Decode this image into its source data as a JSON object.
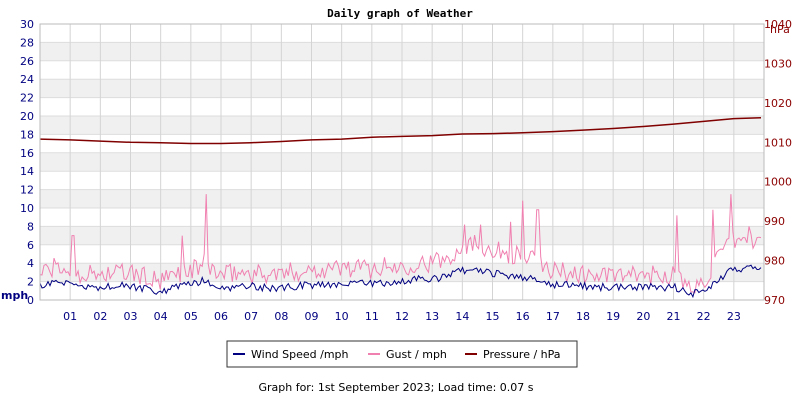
{
  "chart_data": {
    "type": "line",
    "title": "Daily graph of Weather",
    "footer": "Graph for: 1st September 2023; Load time: 0.07 s",
    "y_left": {
      "unit": "mph",
      "min": 0,
      "max": 30,
      "ticks": [
        0,
        2,
        4,
        6,
        8,
        10,
        12,
        14,
        16,
        18,
        20,
        22,
        24,
        26,
        28,
        30
      ]
    },
    "y_right": {
      "unit": "hPa",
      "min": 970,
      "max": 1040,
      "ticks": [
        970,
        980,
        990,
        1000,
        1010,
        1020,
        1030,
        1040
      ]
    },
    "x": {
      "min": 0,
      "max": 24,
      "tick_labels": [
        "01",
        "02",
        "03",
        "04",
        "05",
        "06",
        "07",
        "08",
        "09",
        "10",
        "11",
        "12",
        "13",
        "14",
        "15",
        "16",
        "17",
        "18",
        "19",
        "20",
        "21",
        "22",
        "23"
      ]
    },
    "grid": true,
    "legend_placement": "bottom",
    "series": [
      {
        "name": "Wind Speed /mph",
        "axis": "left",
        "color": "#000080",
        "x": [
          0,
          0.5,
          1,
          1.5,
          2,
          2.5,
          3,
          3.5,
          4,
          4.5,
          5,
          5.5,
          6,
          6.5,
          7,
          7.5,
          8,
          8.5,
          9,
          9.5,
          10,
          10.5,
          11,
          11.5,
          12,
          12.5,
          13,
          13.5,
          14,
          14.5,
          15,
          15.5,
          16,
          16.5,
          17,
          17.5,
          18,
          18.5,
          19,
          19.5,
          20,
          20.5,
          21,
          21.5,
          22,
          22.5,
          23,
          23.5,
          23.9
        ],
        "values": [
          1.5,
          2.1,
          1.6,
          1.3,
          1.4,
          1.6,
          1.5,
          1.2,
          0.8,
          1.4,
          1.7,
          2.2,
          1.2,
          1.5,
          1.6,
          1.3,
          1.3,
          1.5,
          1.6,
          1.7,
          1.8,
          1.9,
          1.8,
          1.9,
          2.0,
          2.3,
          2.2,
          2.6,
          3.2,
          3.1,
          2.9,
          2.7,
          2.5,
          2.2,
          1.7,
          1.6,
          1.5,
          1.4,
          1.4,
          1.3,
          1.5,
          1.3,
          1.5,
          0.6,
          1.0,
          2.2,
          3.4,
          3.5,
          3.3
        ]
      },
      {
        "name": "Gust / mph",
        "axis": "left",
        "color": "#f080b0",
        "x": [
          0,
          0.5,
          1,
          1.5,
          2,
          2.5,
          3,
          3.5,
          4,
          4.5,
          5,
          5.5,
          6,
          6.5,
          7,
          7.5,
          8,
          8.5,
          9,
          9.5,
          10,
          10.5,
          11,
          11.5,
          12,
          12.5,
          13,
          13.5,
          14,
          14.5,
          15,
          15.5,
          16,
          16.5,
          17,
          17.5,
          18,
          18.5,
          19,
          19.5,
          20,
          20.5,
          21,
          21.5,
          22,
          22.5,
          23,
          23.5,
          23.9
        ],
        "values": [
          3.0,
          3.5,
          3.2,
          2.8,
          2.8,
          3.0,
          2.9,
          2.5,
          1.8,
          2.9,
          3.2,
          4.0,
          2.6,
          3.0,
          2.9,
          2.8,
          2.8,
          3.1,
          3.3,
          3.4,
          3.5,
          3.5,
          3.4,
          3.6,
          3.6,
          4.1,
          4.0,
          4.5,
          6.0,
          6.2,
          5.5,
          5.0,
          4.8,
          4.2,
          3.2,
          3.0,
          2.8,
          2.6,
          2.7,
          2.5,
          2.8,
          2.6,
          2.9,
          1.2,
          2.0,
          4.5,
          6.5,
          6.5,
          6.2
        ],
        "peaks": [
          {
            "x": 1.1,
            "y": 7.0
          },
          {
            "x": 4.7,
            "y": 7.0
          },
          {
            "x": 5.5,
            "y": 11.5
          },
          {
            "x": 14.1,
            "y": 8.2
          },
          {
            "x": 14.6,
            "y": 8.2
          },
          {
            "x": 15.6,
            "y": 8.5
          },
          {
            "x": 16.0,
            "y": 10.8
          },
          {
            "x": 16.5,
            "y": 9.8
          },
          {
            "x": 21.1,
            "y": 9.2
          },
          {
            "x": 22.3,
            "y": 9.8
          },
          {
            "x": 22.9,
            "y": 11.5
          },
          {
            "x": 23.5,
            "y": 8.0
          }
        ]
      },
      {
        "name": "Pressure / hPa",
        "axis": "right",
        "color": "#800000",
        "x": [
          0,
          1,
          2,
          3,
          4,
          5,
          6,
          7,
          8,
          9,
          10,
          11,
          12,
          13,
          14,
          15,
          16,
          17,
          18,
          19,
          20,
          21,
          22,
          23,
          23.9
        ],
        "values": [
          1010.8,
          1010.6,
          1010.3,
          1010.0,
          1009.9,
          1009.7,
          1009.7,
          1009.9,
          1010.2,
          1010.6,
          1010.8,
          1011.3,
          1011.5,
          1011.7,
          1012.1,
          1012.2,
          1012.4,
          1012.7,
          1013.1,
          1013.5,
          1014.0,
          1014.6,
          1015.3,
          1016.0,
          1016.2
        ]
      }
    ]
  }
}
